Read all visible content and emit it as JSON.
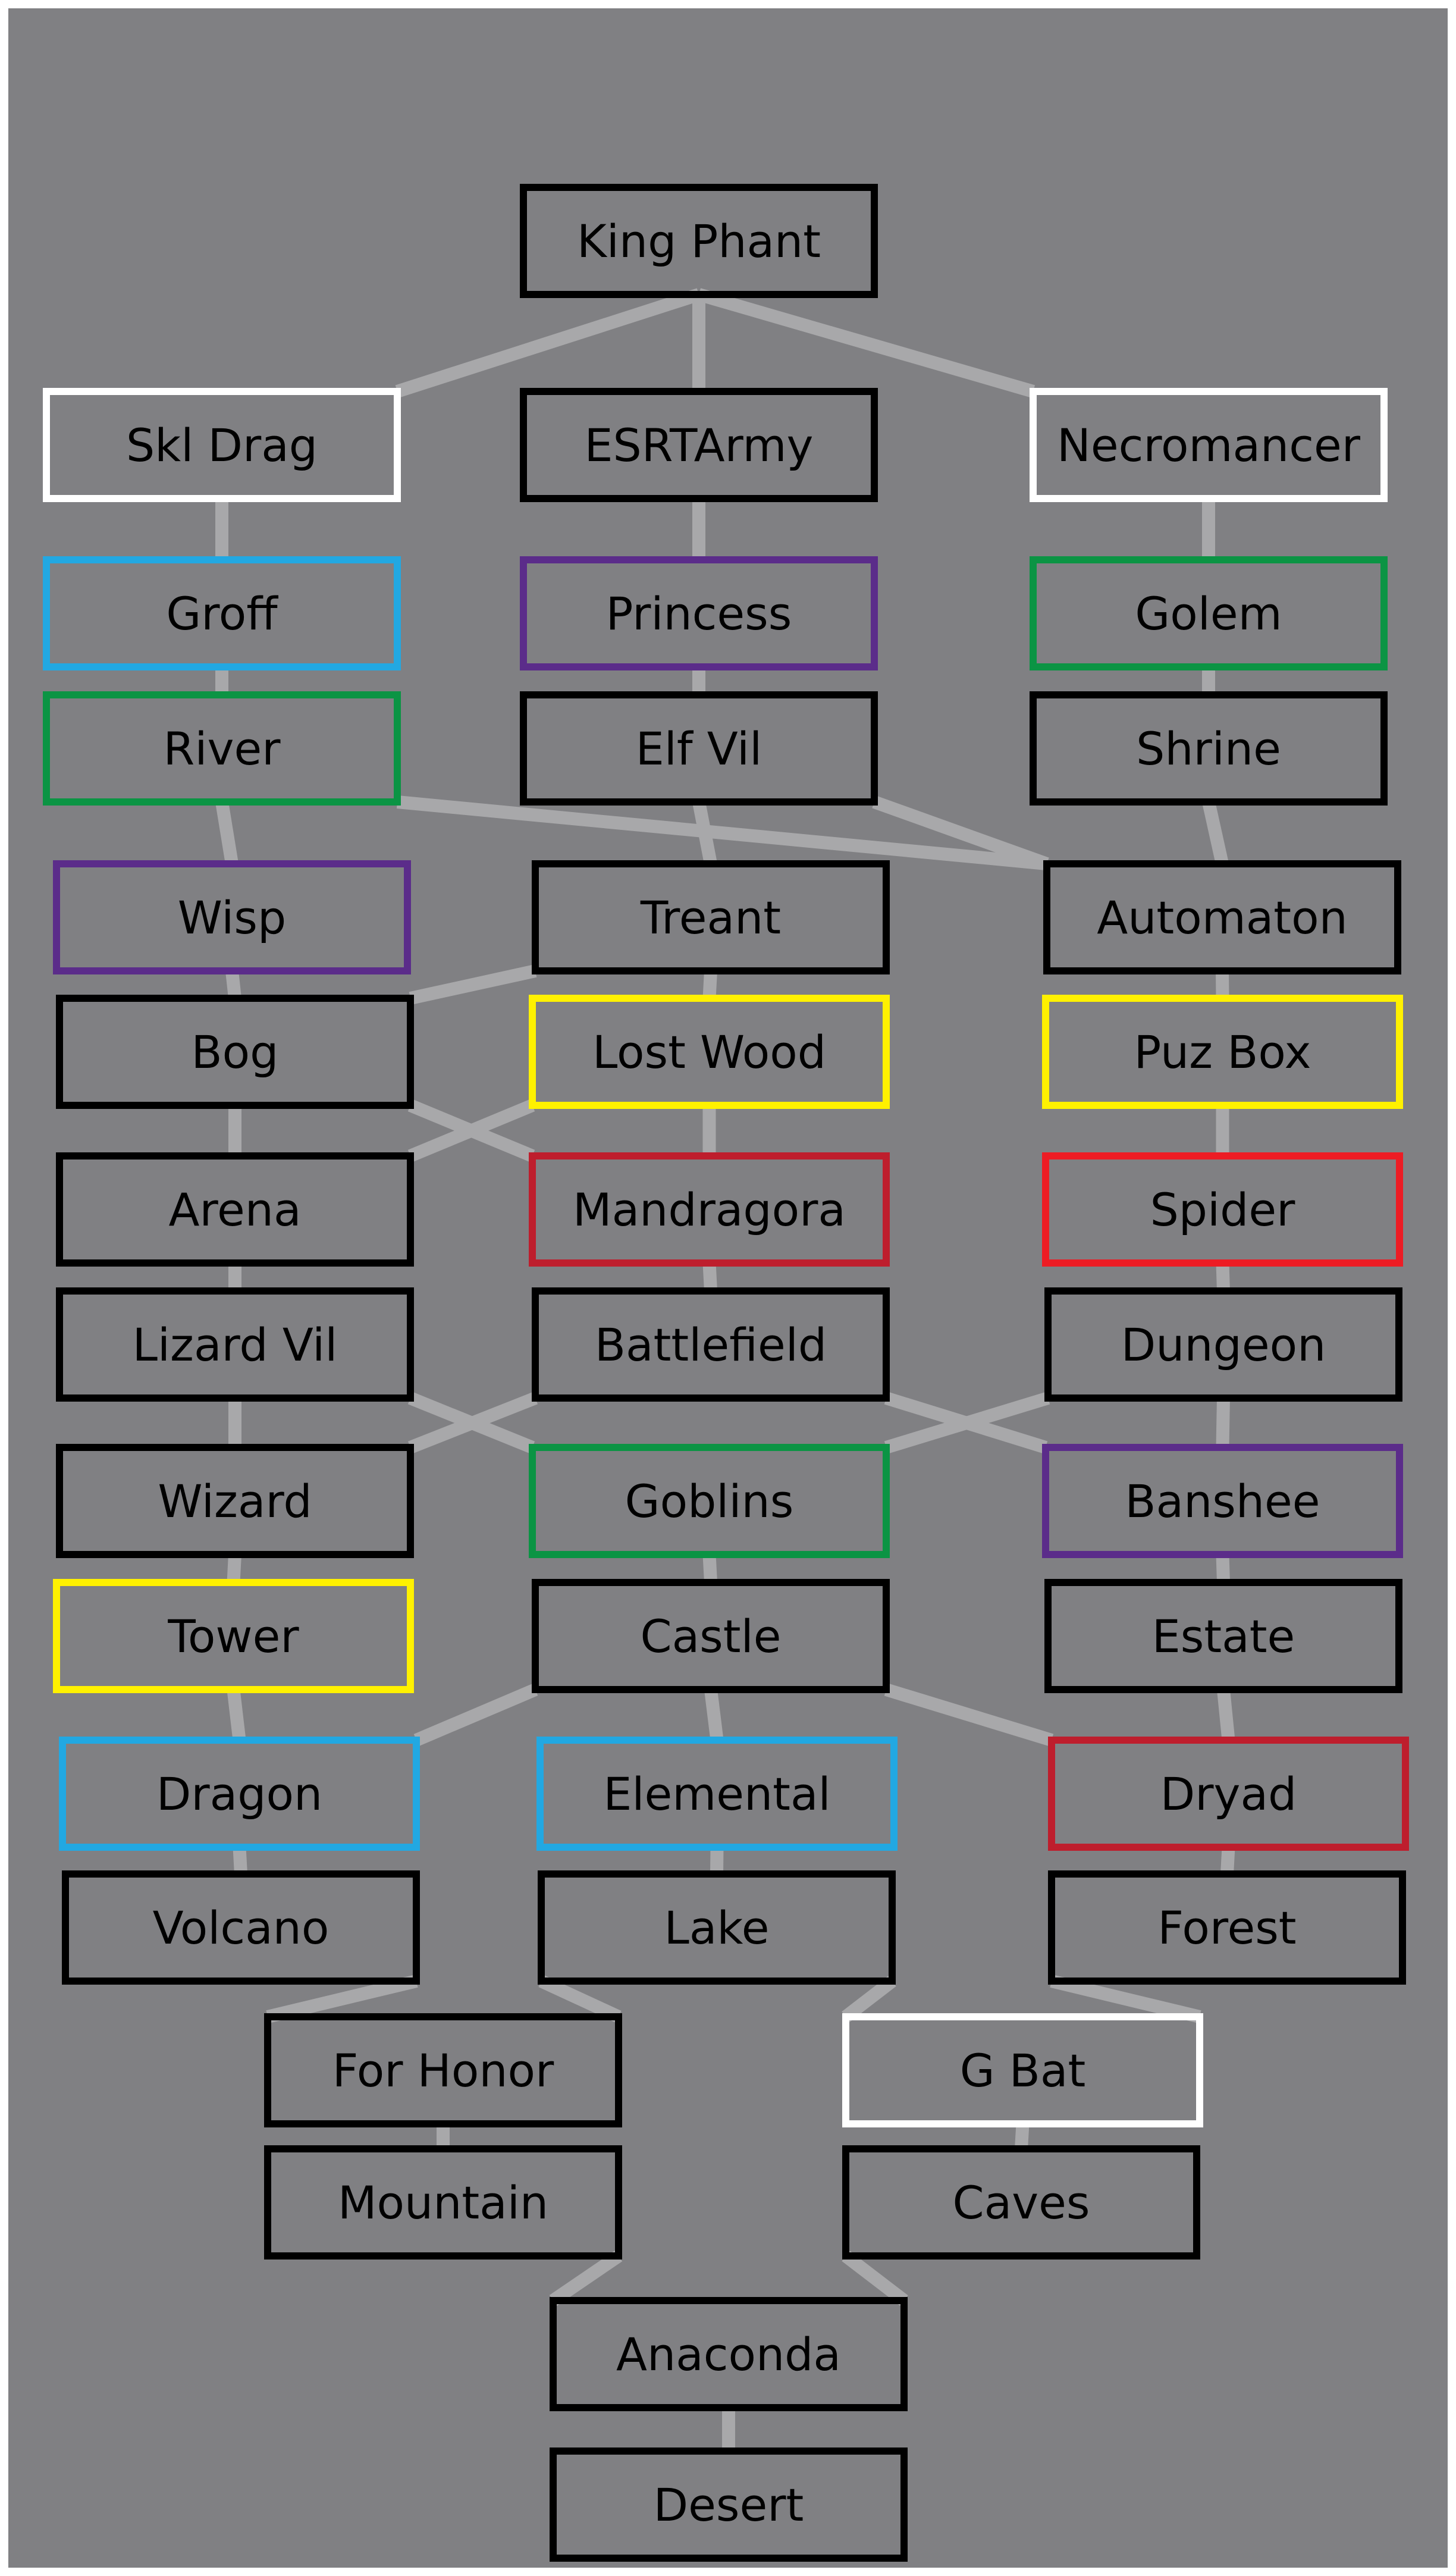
{
  "colors": {
    "background": "#808083",
    "edge": "#a8a8aa",
    "black": "#000000",
    "white": "#ffffff",
    "blue": "#22a8e2",
    "purple": "#5b2c8a",
    "green": "#0b9444",
    "yellow": "#fff100",
    "dark_red": "#be1e2d",
    "red": "#ed1c24"
  },
  "nodes": [
    {
      "id": "king-phant",
      "label": "King Phant",
      "border": "black"
    },
    {
      "id": "skl-drag",
      "label": "Skl Drag",
      "border": "white"
    },
    {
      "id": "esrtarmy",
      "label": "ESRTArmy",
      "border": "black"
    },
    {
      "id": "necromancer",
      "label": "Necromancer",
      "border": "white"
    },
    {
      "id": "groff",
      "label": "Groff",
      "border": "blue"
    },
    {
      "id": "princess",
      "label": "Princess",
      "border": "purple"
    },
    {
      "id": "golem",
      "label": "Golem",
      "border": "green"
    },
    {
      "id": "river",
      "label": "River",
      "border": "green"
    },
    {
      "id": "elf-vil",
      "label": "Elf Vil",
      "border": "black"
    },
    {
      "id": "shrine",
      "label": "Shrine",
      "border": "black"
    },
    {
      "id": "wisp",
      "label": "Wisp",
      "border": "purple"
    },
    {
      "id": "treant",
      "label": "Treant",
      "border": "black"
    },
    {
      "id": "automaton",
      "label": "Automaton",
      "border": "black"
    },
    {
      "id": "bog",
      "label": "Bog",
      "border": "black"
    },
    {
      "id": "lost-wood",
      "label": "Lost Wood",
      "border": "yellow"
    },
    {
      "id": "puz-box",
      "label": "Puz Box",
      "border": "yellow"
    },
    {
      "id": "arena",
      "label": "Arena",
      "border": "black"
    },
    {
      "id": "mandragora",
      "label": "Mandragora",
      "border": "dark_red"
    },
    {
      "id": "spider",
      "label": "Spider",
      "border": "red"
    },
    {
      "id": "lizard-vil",
      "label": "Lizard Vil",
      "border": "black"
    },
    {
      "id": "battlefield",
      "label": "Battlefield",
      "border": "black"
    },
    {
      "id": "dungeon",
      "label": "Dungeon",
      "border": "black"
    },
    {
      "id": "wizard",
      "label": "Wizard",
      "border": "black"
    },
    {
      "id": "goblins",
      "label": "Goblins",
      "border": "green"
    },
    {
      "id": "banshee",
      "label": "Banshee",
      "border": "purple"
    },
    {
      "id": "tower",
      "label": "Tower",
      "border": "yellow"
    },
    {
      "id": "castle",
      "label": "Castle",
      "border": "black"
    },
    {
      "id": "estate",
      "label": "Estate",
      "border": "black"
    },
    {
      "id": "dragon",
      "label": "Dragon",
      "border": "blue"
    },
    {
      "id": "elemental",
      "label": "Elemental",
      "border": "blue"
    },
    {
      "id": "dryad",
      "label": "Dryad",
      "border": "dark_red"
    },
    {
      "id": "volcano",
      "label": "Volcano",
      "border": "black"
    },
    {
      "id": "lake",
      "label": "Lake",
      "border": "black"
    },
    {
      "id": "forest",
      "label": "Forest",
      "border": "black"
    },
    {
      "id": "for-honor",
      "label": "For Honor",
      "border": "black"
    },
    {
      "id": "g-bat",
      "label": "G Bat",
      "border": "white"
    },
    {
      "id": "mountain",
      "label": "Mountain",
      "border": "black"
    },
    {
      "id": "caves",
      "label": "Caves",
      "border": "black"
    },
    {
      "id": "anaconda",
      "label": "Anaconda",
      "border": "black"
    },
    {
      "id": "desert",
      "label": "Desert",
      "border": "black"
    }
  ],
  "edges": [
    [
      "king-phant",
      "skl-drag"
    ],
    [
      "king-phant",
      "esrtarmy"
    ],
    [
      "king-phant",
      "necromancer"
    ],
    [
      "skl-drag",
      "groff"
    ],
    [
      "groff",
      "river"
    ],
    [
      "river",
      "wisp"
    ],
    [
      "river",
      "automaton"
    ],
    [
      "esrtarmy",
      "princess"
    ],
    [
      "princess",
      "elf-vil"
    ],
    [
      "elf-vil",
      "treant"
    ],
    [
      "elf-vil",
      "automaton"
    ],
    [
      "necromancer",
      "golem"
    ],
    [
      "golem",
      "shrine"
    ],
    [
      "shrine",
      "automaton"
    ],
    [
      "wisp",
      "bog"
    ],
    [
      "treant",
      "bog"
    ],
    [
      "treant",
      "lost-wood"
    ],
    [
      "automaton",
      "puz-box"
    ],
    [
      "bog",
      "arena"
    ],
    [
      "bog",
      "mandragora"
    ],
    [
      "lost-wood",
      "arena"
    ],
    [
      "lost-wood",
      "mandragora"
    ],
    [
      "puz-box",
      "spider"
    ],
    [
      "arena",
      "lizard-vil"
    ],
    [
      "mandragora",
      "battlefield"
    ],
    [
      "spider",
      "dungeon"
    ],
    [
      "lizard-vil",
      "wizard"
    ],
    [
      "lizard-vil",
      "goblins"
    ],
    [
      "battlefield",
      "wizard"
    ],
    [
      "battlefield",
      "banshee"
    ],
    [
      "dungeon",
      "goblins"
    ],
    [
      "dungeon",
      "banshee"
    ],
    [
      "wizard",
      "tower"
    ],
    [
      "goblins",
      "castle"
    ],
    [
      "banshee",
      "estate"
    ],
    [
      "tower",
      "dragon"
    ],
    [
      "castle",
      "dragon"
    ],
    [
      "castle",
      "elemental"
    ],
    [
      "castle",
      "dryad"
    ],
    [
      "estate",
      "dryad"
    ],
    [
      "dragon",
      "volcano"
    ],
    [
      "elemental",
      "lake"
    ],
    [
      "dryad",
      "forest"
    ],
    [
      "volcano",
      "for-honor"
    ],
    [
      "lake",
      "for-honor"
    ],
    [
      "lake",
      "g-bat"
    ],
    [
      "forest",
      "g-bat"
    ],
    [
      "for-honor",
      "mountain"
    ],
    [
      "g-bat",
      "caves"
    ],
    [
      "mountain",
      "anaconda"
    ],
    [
      "caves",
      "anaconda"
    ],
    [
      "anaconda",
      "desert"
    ]
  ]
}
